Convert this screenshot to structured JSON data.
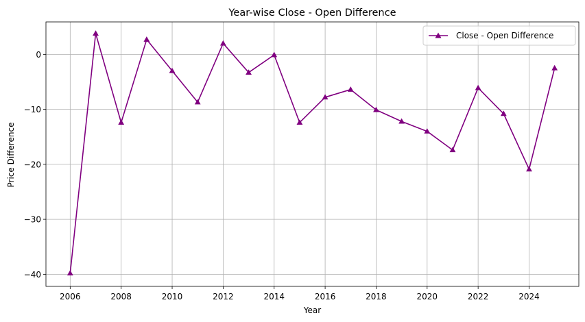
{
  "chart_data": {
    "type": "line",
    "title": "Year-wise Close - Open Difference",
    "xlabel": "Year",
    "ylabel": "Price Difference",
    "xlim": [
      2005.05,
      2025.95
    ],
    "ylim": [
      -42.2,
      5.9
    ],
    "xticks": [
      2006,
      2008,
      2010,
      2012,
      2014,
      2016,
      2018,
      2020,
      2022,
      2024
    ],
    "yticks": [
      0,
      -10,
      -20,
      -30,
      -40
    ],
    "grid": true,
    "legend_position": "top-right",
    "series": [
      {
        "name": "Close - Open Difference",
        "color": "#800080",
        "marker": "triangle-up",
        "x": [
          2006,
          2007,
          2008,
          2009,
          2010,
          2011,
          2012,
          2013,
          2014,
          2015,
          2016,
          2017,
          2018,
          2019,
          2020,
          2021,
          2022,
          2023,
          2024,
          2025
        ],
        "y": [
          -39.8,
          3.8,
          -12.4,
          2.7,
          -3.0,
          -8.7,
          2.0,
          -3.3,
          -0.1,
          -12.4,
          -7.8,
          -6.4,
          -10.1,
          -12.2,
          -14.0,
          -17.4,
          -6.1,
          -10.8,
          -20.9,
          -2.5
        ]
      }
    ]
  }
}
